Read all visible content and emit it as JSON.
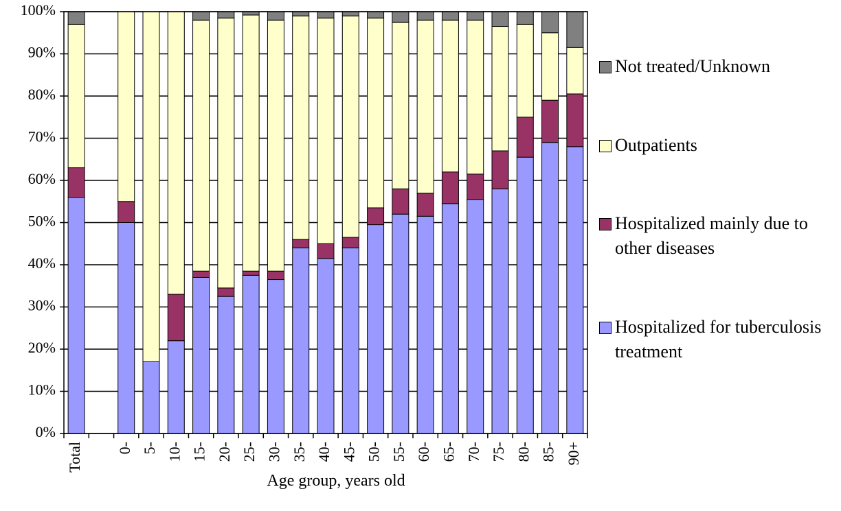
{
  "chart_data": {
    "type": "stacked_bar",
    "x_label": "Age group, years old",
    "categories": [
      "Total",
      null,
      "0-",
      "5-",
      "10-",
      "15-",
      "20-",
      "25-",
      "30-",
      "35-",
      "40-",
      "45-",
      "50-",
      "55-",
      "60-",
      "65-",
      "70-",
      "75-",
      "80-",
      "85-",
      "90+"
    ],
    "series": [
      {
        "name": "Hospitalized for tuberculosis treatment",
        "color": "#9999ff",
        "values": [
          56,
          null,
          50,
          17,
          22,
          37,
          32.5,
          37.5,
          36.5,
          44,
          41.5,
          44,
          49.5,
          52,
          51.5,
          54.5,
          55.5,
          58,
          65.5,
          69,
          68
        ]
      },
      {
        "name": "Hospitalized mainly due to other diseases",
        "color": "#993366",
        "values": [
          7,
          null,
          5,
          0,
          11,
          1.5,
          2,
          1,
          2,
          2,
          3.5,
          2.5,
          4,
          6,
          5.5,
          7.5,
          6,
          9,
          9.5,
          10,
          12.5
        ]
      },
      {
        "name": "Outpatients",
        "color": "#ffffcc",
        "values": [
          34,
          null,
          45,
          83,
          67,
          59.5,
          64,
          60.7,
          59.5,
          53,
          53.5,
          52.5,
          45,
          39.5,
          41,
          36,
          36.5,
          29.5,
          22,
          16,
          11
        ]
      },
      {
        "name": "Not treated/Unknown",
        "color": "#808080",
        "values": [
          3,
          null,
          0,
          0,
          0,
          2,
          1.5,
          0.8,
          2,
          1,
          1.5,
          1,
          1.5,
          2.5,
          2,
          2,
          2,
          3.5,
          3,
          5,
          8.5
        ]
      }
    ],
    "ylim": [
      0,
      100
    ],
    "yticks": [
      {
        "value": 0,
        "label": "0%"
      },
      {
        "value": 10,
        "label": "10%"
      },
      {
        "value": 20,
        "label": "20%"
      },
      {
        "value": 30,
        "label": "30%"
      },
      {
        "value": 40,
        "label": "40%"
      },
      {
        "value": 50,
        "label": "50%"
      },
      {
        "value": 60,
        "label": "60%"
      },
      {
        "value": 70,
        "label": "70%"
      },
      {
        "value": 80,
        "label": "80%"
      },
      {
        "value": 90,
        "label": "90%"
      },
      {
        "value": 100,
        "label": "100%"
      }
    ],
    "grid": true,
    "legend_position": "right"
  }
}
